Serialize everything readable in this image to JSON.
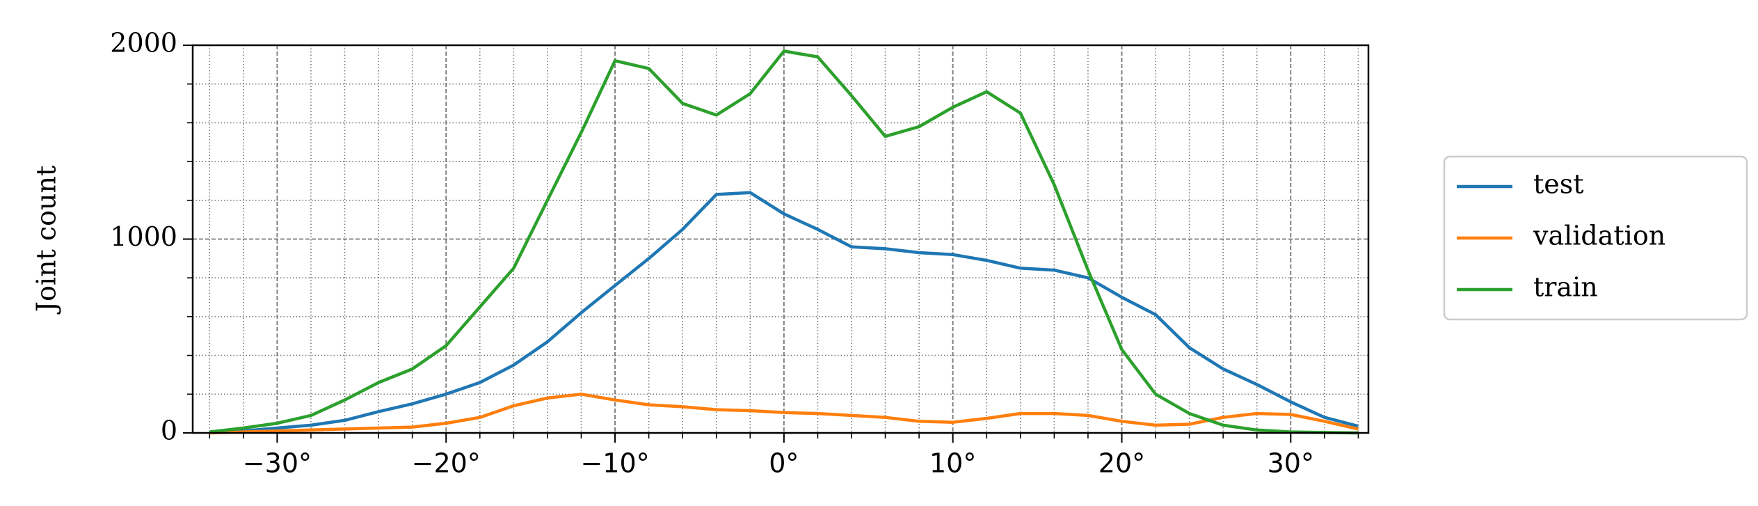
{
  "chart_data": {
    "type": "line",
    "y_label": "Joint count",
    "x": [
      -34,
      -32,
      -30,
      -28,
      -26,
      -24,
      -22,
      -20,
      -18,
      -16,
      -14,
      -12,
      -10,
      -8,
      -6,
      -4,
      -2,
      0,
      2,
      4,
      6,
      8,
      10,
      12,
      14,
      16,
      18,
      20,
      22,
      24,
      26,
      28,
      30,
      32,
      34
    ],
    "series": [
      {
        "name": "test",
        "color": "#1f77b4",
        "values": [
          5,
          10,
          25,
          40,
          65,
          110,
          150,
          200,
          260,
          350,
          470,
          620,
          760,
          900,
          1050,
          1230,
          1240,
          1130,
          1050,
          960,
          950,
          930,
          920,
          890,
          850,
          840,
          800,
          700,
          610,
          440,
          330,
          250,
          160,
          80,
          35
        ]
      },
      {
        "name": "validation",
        "color": "#ff7f0e",
        "values": [
          0,
          5,
          10,
          15,
          20,
          25,
          30,
          50,
          80,
          140,
          180,
          200,
          170,
          145,
          135,
          120,
          115,
          105,
          100,
          90,
          80,
          60,
          55,
          75,
          100,
          100,
          90,
          60,
          40,
          45,
          80,
          100,
          95,
          60,
          20
        ]
      },
      {
        "name": "train",
        "color": "#2ca02c",
        "values": [
          5,
          25,
          50,
          90,
          170,
          260,
          330,
          450,
          650,
          850,
          1200,
          1550,
          1920,
          1880,
          1700,
          1640,
          1750,
          1970,
          1940,
          1740,
          1530,
          1580,
          1680,
          1760,
          1650,
          1280,
          840,
          430,
          200,
          100,
          40,
          15,
          5,
          2,
          0
        ]
      }
    ],
    "xlim": [
      -35,
      34.6
    ],
    "ylim": [
      0,
      2000
    ],
    "xticks": [
      {
        "value": -30,
        "label": "−30°"
      },
      {
        "value": -20,
        "label": "−20°"
      },
      {
        "value": -10,
        "label": "−10°"
      },
      {
        "value": 0,
        "label": "0°"
      },
      {
        "value": 10,
        "label": "10°"
      },
      {
        "value": 20,
        "label": "20°"
      },
      {
        "value": 30,
        "label": "30°"
      }
    ],
    "yticks": [
      0,
      1000,
      2000
    ],
    "xminorticks": [
      -34,
      -32,
      -30,
      -28,
      -26,
      -24,
      -22,
      -20,
      -18,
      -16,
      -14,
      -12,
      -10,
      -8,
      -6,
      -4,
      -2,
      0,
      2,
      4,
      6,
      8,
      10,
      12,
      14,
      16,
      18,
      20,
      22,
      24,
      26,
      28,
      30,
      32,
      34
    ],
    "yminorticks": [
      200,
      400,
      600,
      800,
      1200,
      1400,
      1600,
      1800
    ],
    "grid": true,
    "legend": "outside right"
  }
}
